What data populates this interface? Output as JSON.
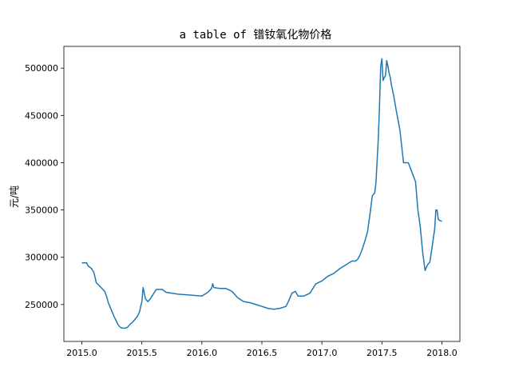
{
  "chart_data": {
    "type": "line",
    "title": "a table of 镨钕氧化物价格",
    "xlabel": "",
    "ylabel": "元/吨",
    "xlim": [
      2014.85,
      2018.15
    ],
    "ylim": [
      211000,
      523000
    ],
    "xticks": [
      2015.0,
      2015.5,
      2016.0,
      2016.5,
      2017.0,
      2017.5,
      2018.0
    ],
    "xtick_labels": [
      "2015.0",
      "2015.5",
      "2016.0",
      "2016.5",
      "2017.0",
      "2017.5",
      "2018.0"
    ],
    "yticks": [
      250000,
      300000,
      350000,
      400000,
      450000,
      500000
    ],
    "ytick_labels": [
      "250000",
      "300000",
      "350000",
      "400000",
      "450000",
      "500000"
    ],
    "grid": false,
    "colors": {
      "line": "#1f77b4",
      "axes": "#000000",
      "background": "#ffffff"
    },
    "series": [
      {
        "x": [
          2015.0,
          2015.04,
          2015.05,
          2015.08,
          2015.1,
          2015.12,
          2015.13,
          2015.16,
          2015.19,
          2015.21,
          2015.22,
          2015.25,
          2015.27,
          2015.3,
          2015.32,
          2015.34,
          2015.36,
          2015.38,
          2015.4,
          2015.42,
          2015.44,
          2015.46,
          2015.48,
          2015.49,
          2015.5,
          2015.51,
          2015.52,
          2015.53,
          2015.55,
          2015.57,
          2015.6,
          2015.62,
          2015.67,
          2015.7,
          2015.8,
          2015.9,
          2016.0,
          2016.05,
          2016.08,
          2016.09,
          2016.1,
          2016.15,
          2016.2,
          2016.25,
          2016.3,
          2016.35,
          2016.4,
          2016.45,
          2016.5,
          2016.55,
          2016.6,
          2016.65,
          2016.7,
          2016.72,
          2016.75,
          2016.78,
          2016.8,
          2016.85,
          2016.9,
          2016.95,
          2017.0,
          2017.05,
          2017.1,
          2017.15,
          2017.2,
          2017.25,
          2017.28,
          2017.3,
          2017.32,
          2017.34,
          2017.36,
          2017.38,
          2017.4,
          2017.42,
          2017.44,
          2017.45,
          2017.47,
          2017.48,
          2017.49,
          2017.5,
          2017.51,
          2017.52,
          2017.53,
          2017.54,
          2017.55,
          2017.56,
          2017.57,
          2017.58,
          2017.6,
          2017.62,
          2017.65,
          2017.68,
          2017.7,
          2017.72,
          2017.75,
          2017.78,
          2017.8,
          2017.82,
          2017.84,
          2017.86,
          2017.88,
          2017.9,
          2017.92,
          2017.94,
          2017.95,
          2017.96,
          2017.97,
          2017.98,
          2018.0
        ],
        "values": [
          294000,
          294000,
          291000,
          288000,
          284000,
          273000,
          272000,
          268000,
          264000,
          257000,
          252000,
          243000,
          237000,
          229000,
          226000,
          225000,
          225000,
          226000,
          229000,
          231000,
          234000,
          237000,
          242000,
          248000,
          253000,
          268000,
          262000,
          256000,
          253000,
          256000,
          262000,
          266000,
          266000,
          263000,
          261000,
          260000,
          259000,
          263000,
          267000,
          272000,
          268000,
          267000,
          267000,
          264000,
          257000,
          253000,
          252000,
          250000,
          248000,
          246000,
          245000,
          246000,
          248000,
          253000,
          262000,
          264000,
          259000,
          259000,
          262000,
          272000,
          275000,
          280000,
          283000,
          288000,
          292000,
          296000,
          296000,
          298000,
          303000,
          310000,
          318000,
          327000,
          345000,
          365000,
          368000,
          378000,
          425000,
          460000,
          502000,
          510000,
          487000,
          490000,
          492000,
          508000,
          502000,
          495000,
          490000,
          482000,
          470000,
          455000,
          435000,
          400000,
          400000,
          400000,
          390000,
          380000,
          350000,
          332000,
          305000,
          286000,
          292000,
          295000,
          312000,
          330000,
          350000,
          350000,
          340000,
          339000,
          338000
        ]
      }
    ]
  }
}
